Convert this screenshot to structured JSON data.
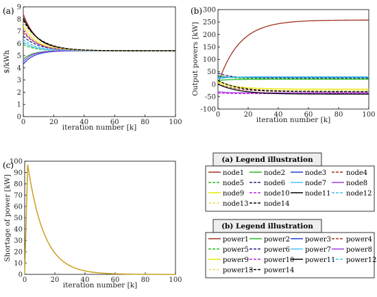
{
  "chart_data": [
    {
      "panel": "(a)",
      "type": "line",
      "xlabel": "iteration number [k]",
      "ylabel": "$/kWh",
      "xlim": [
        0,
        100
      ],
      "ylim": [
        0,
        9
      ],
      "xticks": [
        0,
        20,
        40,
        60,
        80,
        100
      ],
      "yticks": [
        0,
        1,
        2,
        3,
        4,
        5,
        6,
        7,
        8,
        9
      ],
      "convergence_value": 5.4,
      "series": [
        {
          "name": "node1",
          "start": 8.4,
          "tau": 9
        },
        {
          "name": "node2",
          "start": 4.7,
          "tau": 6
        },
        {
          "name": "node3",
          "start": 4.3,
          "tau": 7
        },
        {
          "name": "node4",
          "start": 6.9,
          "tau": 10
        },
        {
          "name": "node5",
          "start": 5.9,
          "tau": 8
        },
        {
          "name": "node6",
          "start": 6.6,
          "tau": 10
        },
        {
          "name": "node7",
          "start": 6.1,
          "tau": 8
        },
        {
          "name": "node8",
          "start": 4.5,
          "tau": 6
        },
        {
          "name": "node9",
          "start": 7.4,
          "tau": 9
        },
        {
          "name": "node10",
          "start": 7.1,
          "tau": 9
        },
        {
          "name": "node11",
          "start": 8.1,
          "tau": 10
        },
        {
          "name": "node12",
          "start": 6.3,
          "tau": 9
        },
        {
          "name": "node13",
          "start": 7.7,
          "tau": 10
        },
        {
          "name": "node14",
          "start": 7.9,
          "tau": 11
        }
      ]
    },
    {
      "panel": "(b)",
      "type": "line",
      "xlabel": "iteration number [k]",
      "ylabel": "Output powers [kW]",
      "xlim": [
        0,
        100
      ],
      "ylim": [
        -100,
        300
      ],
      "xticks": [
        0,
        20,
        40,
        60,
        80,
        100
      ],
      "yticks": [
        -100,
        -50,
        0,
        50,
        100,
        150,
        200,
        250,
        300
      ],
      "series": [
        {
          "name": "power1",
          "start": 0,
          "end": 258,
          "tau": 14
        },
        {
          "name": "power2",
          "start": 15,
          "end": 20,
          "tau": 8
        },
        {
          "name": "power3",
          "start": 30,
          "end": 28,
          "tau": 6
        },
        {
          "name": "power4",
          "start": 5,
          "end": -30,
          "tau": 12
        },
        {
          "name": "power5",
          "start": 35,
          "end": 22,
          "tau": 8
        },
        {
          "name": "power6",
          "start": 45,
          "end": 25,
          "tau": 8
        },
        {
          "name": "power7",
          "start": 20,
          "end": 30,
          "tau": 6
        },
        {
          "name": "power8",
          "start": -30,
          "end": -35,
          "tau": 6
        },
        {
          "name": "power9",
          "start": 10,
          "end": -20,
          "tau": 12
        },
        {
          "name": "power10",
          "start": -35,
          "end": -38,
          "tau": 6
        },
        {
          "name": "power11",
          "start": 0,
          "end": -40,
          "tau": 14
        },
        {
          "name": "power12",
          "start": 25,
          "end": 28,
          "tau": 6
        },
        {
          "name": "power13",
          "start": 5,
          "end": -25,
          "tau": 12
        },
        {
          "name": "power14",
          "start": 15,
          "end": -30,
          "tau": 14
        }
      ]
    },
    {
      "panel": "(c)",
      "type": "line",
      "xlabel": "iteration number [k]",
      "ylabel": "Shortage of power [kW]",
      "xlim": [
        0,
        100
      ],
      "ylim": [
        0,
        100
      ],
      "xticks": [
        0,
        20,
        40,
        60,
        80,
        100
      ],
      "yticks": [
        0,
        10,
        20,
        30,
        40,
        50,
        60,
        70,
        80,
        90,
        100
      ],
      "peak": {
        "x": 2,
        "y": 97
      },
      "decay_tau": 11
    }
  ],
  "legends": [
    {
      "title": "(a) Legend illustration",
      "entries": [
        "node1",
        "node2",
        "node3",
        "node4",
        "node5",
        "node6",
        "node7",
        "node8",
        "node9",
        "node10",
        "node11",
        "node12",
        "node13",
        "node14"
      ]
    },
    {
      "title": "(b) Legend illustration",
      "entries": [
        "power1",
        "power2",
        "power3",
        "power4",
        "power5",
        "power6",
        "power7",
        "power8",
        "power9",
        "power10",
        "power11",
        "power12",
        "power13",
        "power14"
      ]
    }
  ],
  "styles": [
    {
      "color": "#a0321e",
      "dash": "none"
    },
    {
      "color": "#22bb22",
      "dash": "none"
    },
    {
      "color": "#1f3fd0",
      "dash": "none"
    },
    {
      "color": "#a0321e",
      "dash": "4,2"
    },
    {
      "color": "#22bb22",
      "dash": "4,2"
    },
    {
      "color": "#1a237e",
      "dash": "4,2"
    },
    {
      "color": "#4fc3f7",
      "dash": "none"
    },
    {
      "color": "#a040e0",
      "dash": "none"
    },
    {
      "color": "#e8e800",
      "dash": "none"
    },
    {
      "color": "#c020e0",
      "dash": "4,2"
    },
    {
      "color": "#000000",
      "dash": "none"
    },
    {
      "color": "#40c0e0",
      "dash": "4,2"
    },
    {
      "color": "#e8e060",
      "dash": "4,2"
    },
    {
      "color": "#000000",
      "dash": "4,2"
    }
  ],
  "shortage_color": "#c8a020"
}
